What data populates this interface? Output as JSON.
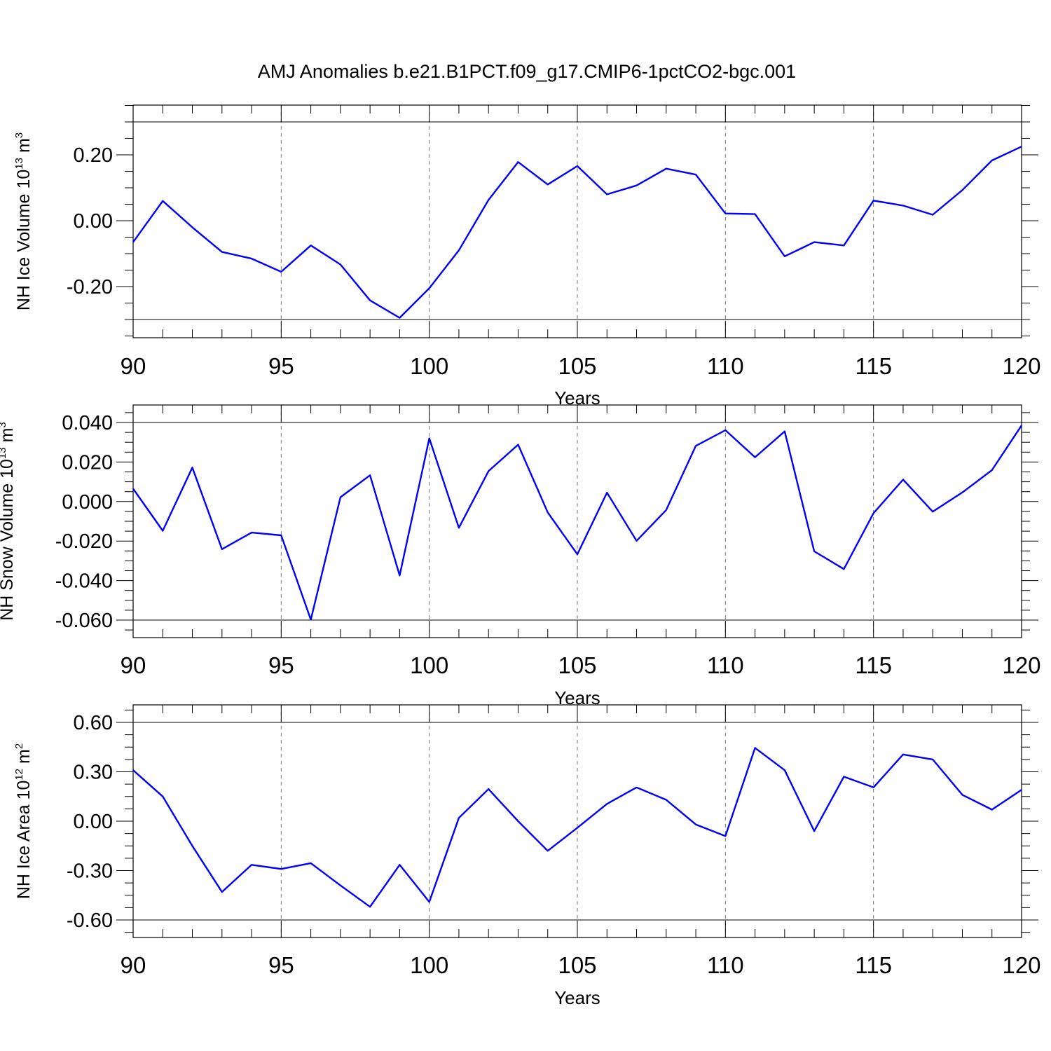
{
  "title": "AMJ Anomalies b.e21.B1PCT.f09_g17.CMIP6-1pctCO2-bgc.001",
  "line_color": "#0000ff",
  "chart_data": [
    {
      "type": "line",
      "ylabel": "NH Ice Volume 10",
      "ylabel_sup": "13",
      "ylabel_unit": " m",
      "ylabel_unit_sup": "3",
      "xlabel": "Years",
      "xlim": [
        90,
        120
      ],
      "ylim": [
        -0.3,
        0.3
      ],
      "xticks": [
        90,
        95,
        100,
        105,
        110,
        115,
        120
      ],
      "xtick_labels": [
        "90",
        "95",
        "100",
        "105",
        "110",
        "115",
        "120"
      ],
      "yticks": [
        -0.2,
        0.0,
        0.2
      ],
      "ytick_labels": [
        "-0.20",
        "0.00",
        "0.20"
      ],
      "grid_x": true,
      "series": [
        {
          "x": [
            90,
            91,
            92,
            93,
            94,
            95,
            96,
            97,
            98,
            99,
            100,
            101,
            102,
            103,
            104,
            105,
            106,
            107,
            108,
            109,
            110,
            111,
            112,
            113,
            114,
            115,
            116,
            117,
            118,
            119,
            120
          ],
          "values": [
            -0.065,
            0.06,
            -0.02,
            -0.095,
            -0.115,
            -0.155,
            -0.075,
            -0.133,
            -0.242,
            -0.295,
            -0.205,
            -0.09,
            0.063,
            0.178,
            0.11,
            0.166,
            0.08,
            0.107,
            0.158,
            0.14,
            0.022,
            0.02,
            -0.108,
            -0.065,
            -0.075,
            0.061,
            0.046,
            0.018,
            0.093,
            0.183,
            0.225
          ]
        }
      ]
    },
    {
      "type": "line",
      "ylabel": "NH Snow Volume 10",
      "ylabel_sup": "13",
      "ylabel_unit": " m",
      "ylabel_unit_sup": "3",
      "xlabel": "Years",
      "xlim": [
        90,
        120
      ],
      "ylim": [
        -0.06,
        0.04
      ],
      "xticks": [
        90,
        95,
        100,
        105,
        110,
        115,
        120
      ],
      "xtick_labels": [
        "90",
        "95",
        "100",
        "105",
        "110",
        "115",
        "120"
      ],
      "yticks": [
        -0.06,
        -0.04,
        -0.02,
        0.0,
        0.02,
        0.04
      ],
      "ytick_labels": [
        "-0.060",
        "-0.040",
        "-0.020",
        "0.000",
        "0.020",
        "0.040"
      ],
      "grid_x": true,
      "series": [
        {
          "x": [
            90,
            91,
            92,
            93,
            94,
            95,
            96,
            97,
            98,
            99,
            100,
            101,
            102,
            103,
            104,
            105,
            106,
            107,
            108,
            109,
            110,
            111,
            112,
            113,
            114,
            115,
            116,
            117,
            118,
            119,
            120
          ],
          "values": [
            0.0065,
            -0.0148,
            0.0172,
            -0.0241,
            -0.0157,
            -0.0171,
            -0.0598,
            0.0022,
            0.0133,
            -0.0374,
            0.032,
            -0.0133,
            0.0154,
            0.0288,
            -0.0055,
            -0.0267,
            0.0045,
            -0.0199,
            -0.0043,
            0.0282,
            0.0361,
            0.0224,
            0.0355,
            -0.0252,
            -0.0342,
            -0.0059,
            0.0111,
            -0.0051,
            0.0046,
            0.0159,
            0.0385
          ]
        }
      ]
    },
    {
      "type": "line",
      "ylabel": "NH Ice Area 10",
      "ylabel_sup": "12",
      "ylabel_unit": " m",
      "ylabel_unit_sup": "2",
      "xlabel": "Years",
      "xlim": [
        90,
        120
      ],
      "ylim": [
        -0.6,
        0.6
      ],
      "xticks": [
        90,
        95,
        100,
        105,
        110,
        115,
        120
      ],
      "xtick_labels": [
        "90",
        "95",
        "100",
        "105",
        "110",
        "115",
        "120"
      ],
      "yticks": [
        -0.6,
        -0.3,
        0.0,
        0.3,
        0.6
      ],
      "ytick_labels": [
        "-0.60",
        "-0.30",
        "0.00",
        "0.30",
        "0.60"
      ],
      "grid_x": true,
      "series": [
        {
          "x": [
            90,
            91,
            92,
            93,
            94,
            95,
            96,
            97,
            98,
            99,
            100,
            101,
            102,
            103,
            104,
            105,
            106,
            107,
            108,
            109,
            110,
            111,
            112,
            113,
            114,
            115,
            116,
            117,
            118,
            119,
            120
          ],
          "values": [
            0.31,
            0.15,
            -0.15,
            -0.43,
            -0.265,
            -0.29,
            -0.255,
            -0.39,
            -0.52,
            -0.265,
            -0.49,
            0.02,
            0.195,
            0.0,
            -0.18,
            -0.04,
            0.105,
            0.205,
            0.13,
            -0.02,
            -0.09,
            0.445,
            0.31,
            -0.06,
            0.27,
            0.205,
            0.405,
            0.375,
            0.16,
            0.07,
            0.19
          ]
        }
      ]
    }
  ]
}
